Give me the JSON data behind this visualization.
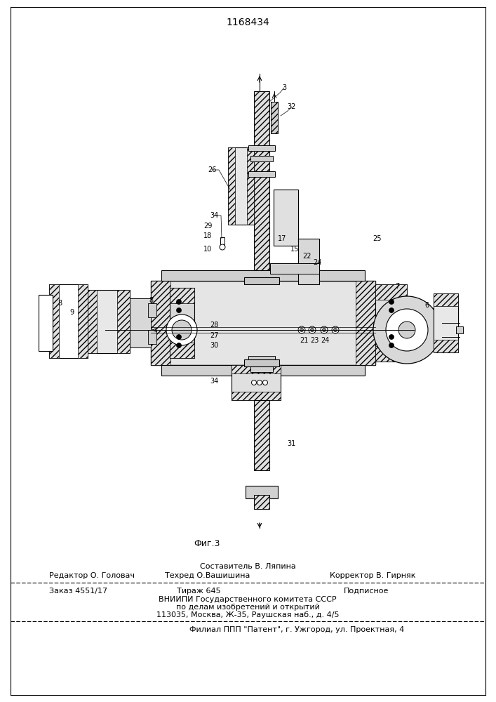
{
  "patent_number": "1168434",
  "figure_label": "Фиг.3",
  "header_line1": "Составитель В. Ляпина",
  "header_line2_col1": "Редактор О. Головач",
  "header_line2_col2": "Техред О.Вашишина",
  "header_line2_col3": "Корректор В. Гирняк",
  "footer_line1_col1": "Заказ 4551/17",
  "footer_line1_col2": "Тираж 645",
  "footer_line1_col3": "Подписное",
  "footer_line2": "ВНИИПИ Государственного комитета СССР",
  "footer_line3": "по делам изобретений и открытий",
  "footer_line4": "113035, Москва, Ж-35, Раушская наб., д. 4/5",
  "footer_line5": "Филиал ППП \"Патент\", г. Ужгород, ул. Проектная, 4",
  "bg_color": "#ffffff",
  "text_color": "#000000",
  "fig_width": 7.07,
  "fig_height": 10.0,
  "dpi": 100
}
